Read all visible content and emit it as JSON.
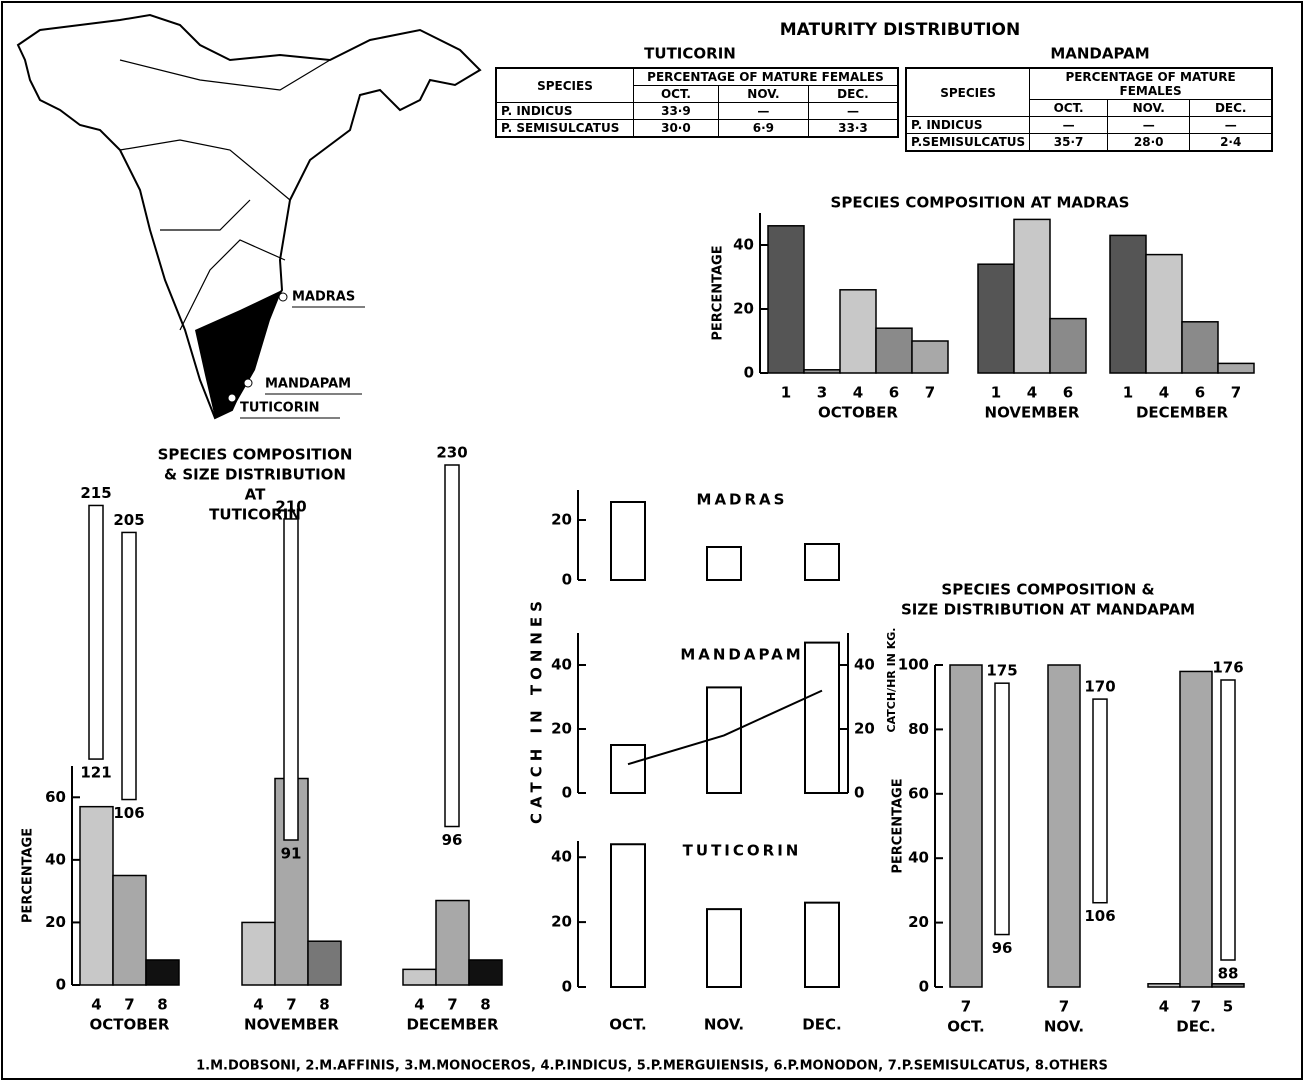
{
  "map": {
    "labels": [
      "MADRAS",
      "MANDAPAM",
      "TUTICORIN"
    ]
  },
  "maturity": {
    "title": "MATURITY DISTRIBUTION",
    "tables": [
      {
        "station": "TUTICORIN",
        "header_species": "SPECIES",
        "header_pct": "PERCENTAGE OF MATURE FEMALES",
        "months": [
          "OCT.",
          "NOV.",
          "DEC."
        ],
        "rows": [
          [
            "P. INDICUS",
            "33·9",
            "—",
            "—"
          ],
          [
            "P. SEMISULCATUS",
            "30·0",
            "6·9",
            "33·3"
          ]
        ]
      },
      {
        "station": "MANDAPAM",
        "header_species": "SPECIES",
        "header_pct": "PERCENTAGE OF MATURE FEMALES",
        "months": [
          "OCT.",
          "NOV.",
          "DEC."
        ],
        "rows": [
          [
            "P. INDICUS",
            "—",
            "—",
            "—"
          ],
          [
            "P.SEMISULCATUS",
            "35·7",
            "28·0",
            "2·4"
          ]
        ]
      }
    ]
  },
  "chart_data": [
    {
      "type": "bar",
      "title": [
        "SPECIES COMPOSITION AT MADRAS"
      ],
      "ylabel": "PERCENTAGE",
      "ylim": [
        0,
        50
      ],
      "yticks": [
        0,
        20,
        40
      ],
      "groups": [
        {
          "name": "OCTOBER",
          "categories": [
            "1",
            "3",
            "4",
            "6",
            "7"
          ],
          "values": [
            46,
            1,
            26,
            14,
            10
          ],
          "colors": [
            "#555555",
            "#999999",
            "#c8c8c8",
            "#8a8a8a",
            "#a8a8a8"
          ]
        },
        {
          "name": "NOVEMBER",
          "categories": [
            "1",
            "4",
            "6"
          ],
          "values": [
            34,
            48,
            17
          ],
          "colors": [
            "#555555",
            "#c8c8c8",
            "#8a8a8a"
          ]
        },
        {
          "name": "DECEMBER",
          "categories": [
            "1",
            "4",
            "6",
            "7"
          ],
          "values": [
            43,
            37,
            16,
            3
          ],
          "colors": [
            "#555555",
            "#c8c8c8",
            "#8a8a8a",
            "#a8a8a8"
          ]
        }
      ]
    },
    {
      "type": "bar",
      "title": [
        "SPECIES COMPOSITION",
        "& SIZE DISTRIBUTION",
        "AT",
        "TUTICORIN"
      ],
      "ylabel": "PERCENTAGE",
      "ylim": [
        0,
        70
      ],
      "yticks": [
        0,
        20,
        40,
        60
      ],
      "groups": [
        {
          "name": "OCTOBER",
          "categories": [
            "4",
            "7",
            "8"
          ],
          "values": [
            57,
            35,
            8
          ],
          "colors": [
            "#c8c8c8",
            "#a8a8a8",
            "#111111"
          ],
          "sizes": [
            [
              121,
              215
            ],
            [
              106,
              205
            ],
            null
          ]
        },
        {
          "name": "NOVEMBER",
          "categories": [
            "4",
            "7",
            "8"
          ],
          "values": [
            20,
            66,
            14
          ],
          "colors": [
            "#c8c8c8",
            "#a8a8a8",
            "#777777"
          ],
          "sizes": [
            null,
            [
              91,
              210
            ],
            null
          ]
        },
        {
          "name": "DECEMBER",
          "categories": [
            "4",
            "7",
            "8"
          ],
          "values": [
            5,
            27,
            8
          ],
          "colors": [
            "#c8c8c8",
            "#a8a8a8",
            "#111111"
          ],
          "sizes": [
            null,
            [
              96,
              230
            ],
            null
          ]
        }
      ]
    },
    {
      "type": "panels",
      "ylabel": "CATCH IN TONNES",
      "categories": [
        "OCT.",
        "NOV.",
        "DEC."
      ],
      "panels": [
        {
          "name": "MADRAS",
          "values": [
            26,
            11,
            12
          ],
          "ylim": [
            0,
            30
          ],
          "yticks": [
            0,
            20
          ]
        },
        {
          "name": "MANDAPAM",
          "values": [
            15,
            33,
            47
          ],
          "ylim": [
            0,
            50
          ],
          "yticks": [
            0,
            20,
            40
          ],
          "line": {
            "name": "CATCH/HR IN KG.",
            "values": [
              9,
              18,
              32
            ],
            "axis": "y2"
          },
          "y2lim": [
            0,
            50
          ],
          "y2ticks": [
            0,
            20,
            40
          ]
        },
        {
          "name": "TUTICORIN",
          "values": [
            44,
            24,
            26
          ],
          "ylim": [
            0,
            45
          ],
          "yticks": [
            0,
            20,
            40
          ]
        }
      ]
    },
    {
      "type": "bar",
      "title": [
        "SPECIES COMPOSITION &",
        "SIZE DISTRIBUTION AT MANDAPAM"
      ],
      "ylabel": "PERCENTAGE",
      "ylim": [
        0,
        100
      ],
      "yticks": [
        0,
        20,
        40,
        60,
        80,
        100
      ],
      "groups": [
        {
          "name": "OCT.",
          "categories": [
            "7"
          ],
          "values": [
            100
          ],
          "colors": [
            "#a8a8a8"
          ],
          "sizes": [
            [
              96,
              175
            ]
          ]
        },
        {
          "name": "NOV.",
          "categories": [
            "7"
          ],
          "values": [
            100
          ],
          "colors": [
            "#a8a8a8"
          ],
          "sizes": [
            [
              106,
              170
            ]
          ]
        },
        {
          "name": "DEC.",
          "categories": [
            "4",
            "7",
            "5"
          ],
          "values": [
            1,
            98,
            1
          ],
          "colors": [
            "#c8c8c8",
            "#a8a8a8",
            "#777777"
          ],
          "sizes": [
            null,
            [
              88,
              176
            ],
            null
          ]
        }
      ]
    }
  ],
  "footnote": "1.M.DOBSONI, 2.M.AFFINIS, 3.M.MONOCEROS, 4.P.INDICUS, 5.P.MERGUIENSIS, 6.P.MONODON, 7.P.SEMISULCATUS, 8.OTHERS"
}
